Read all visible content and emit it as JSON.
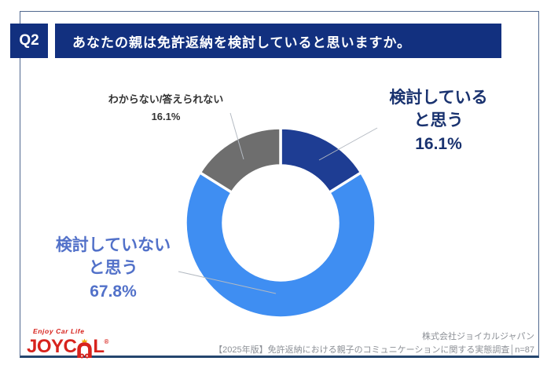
{
  "header": {
    "question_no": "Q2",
    "question": "あなたの親は免許返納を検討していると思いますか。"
  },
  "chart_data": {
    "type": "pie",
    "subtype": "donut",
    "title": "あなたの親は免許返納を検討していると思いますか。",
    "categories": [
      "検討していると思う",
      "検討していないと思う",
      "わからない/答えられない"
    ],
    "values": [
      16.1,
      67.8,
      16.1
    ],
    "unit": "%",
    "colors": [
      "#1e3d93",
      "#3f8ef2",
      "#6e6e6e"
    ],
    "start_angle": "top",
    "direction": "clockwise",
    "inner_radius_ratio": 0.6,
    "legend_position": "none",
    "labels": {
      "considering": {
        "line1": "検討している",
        "line2": "と思う",
        "value": "16.1%"
      },
      "not_considering": {
        "line1": "検討していない",
        "line2": "と思う",
        "value": "67.8%"
      },
      "unknown": {
        "line1": "わからない/答えられない",
        "value": "16.1%"
      }
    }
  },
  "footer": {
    "logo": {
      "tagline": "Enjoy Car Life",
      "brand_prefix": "JOYC",
      "brand_suffix": "L",
      "registered": "®"
    },
    "company": "株式会社ジョイカルジャパン",
    "survey": "【2025年版】免許返納における親子のコミュニケーションに関する実態調査│n=87"
  }
}
